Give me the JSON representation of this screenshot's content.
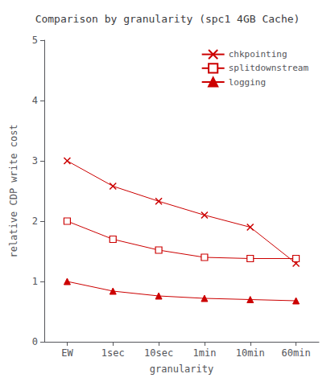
{
  "chart_data": {
    "type": "line",
    "title": "Comparison by granularity (spc1 4GB Cache)",
    "xlabel": "granularity",
    "ylabel": "relative CDP write cost",
    "categories": [
      "EW",
      "1sec",
      "10sec",
      "1min",
      "10min",
      "60min"
    ],
    "series": [
      {
        "name": "chkpointing",
        "color": "#cc0000",
        "marker": "x",
        "values": [
          3.0,
          2.58,
          2.33,
          2.1,
          1.9,
          1.3
        ]
      },
      {
        "name": "splitdownstream",
        "color": "#cc0000",
        "marker": "square",
        "values": [
          2.0,
          1.7,
          1.52,
          1.4,
          1.38,
          1.38
        ]
      },
      {
        "name": "logging",
        "color": "#cc0000",
        "marker": "triangle",
        "values": [
          1.0,
          0.84,
          0.76,
          0.72,
          0.7,
          0.68
        ]
      }
    ],
    "ylim": [
      0,
      5
    ],
    "yticks": [
      0,
      1,
      2,
      3,
      4,
      5
    ],
    "grid": false,
    "legend": "upper right"
  }
}
